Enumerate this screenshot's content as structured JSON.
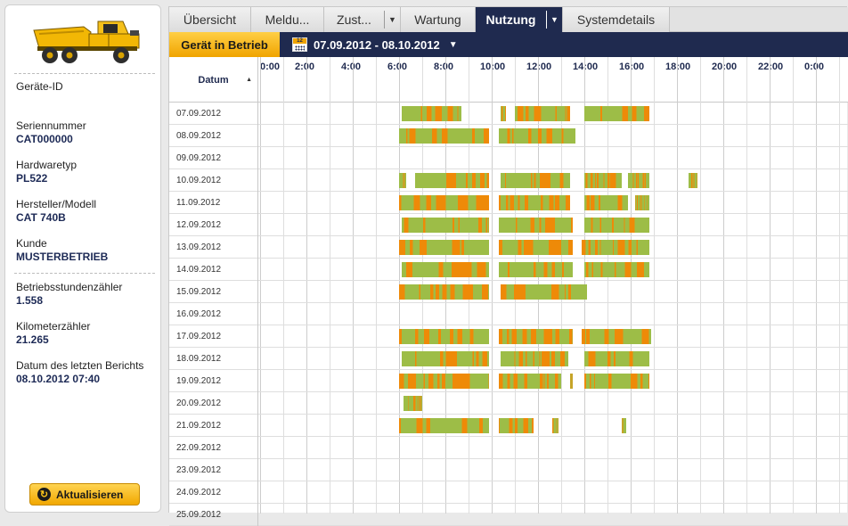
{
  "tabs": [
    {
      "label": "Übersicht",
      "active": false,
      "dropdown": false
    },
    {
      "label": "Meldu...",
      "active": false,
      "dropdown": false
    },
    {
      "label": "Zust...",
      "active": false,
      "dropdown": true
    },
    {
      "label": "Wartung",
      "active": false,
      "dropdown": false
    },
    {
      "label": "Nutzung",
      "active": true,
      "dropdown": true
    },
    {
      "label": "Systemdetails",
      "active": false,
      "dropdown": false
    }
  ],
  "toolbar": {
    "status_label": "Gerät in Betrieb",
    "calendar_day": "12",
    "date_range": "07.09.2012 - 08.10.2012"
  },
  "grid_header": {
    "date_column": "Datum",
    "hours": [
      "0:00",
      "2:00",
      "4:00",
      "6:00",
      "8:00",
      "10:00",
      "12:00",
      "14:00",
      "16:00",
      "18:00",
      "20:00",
      "22:00",
      "0:00"
    ]
  },
  "device": {
    "geraete_id_label": "Geräte-ID",
    "geraete_id_value": "",
    "fields": [
      {
        "label": "Seriennummer",
        "value": "CAT000000"
      },
      {
        "label": "Hardwaretyp",
        "value": "PL522"
      },
      {
        "label": "Hersteller/Modell",
        "value": "CAT 740B"
      },
      {
        "label": "Kunde",
        "value": "MUSTERBETRIEB"
      },
      {
        "label": "Betriebsstundenzähler",
        "value": "1.558"
      },
      {
        "label": "Kilometerzähler",
        "value": "21.265"
      },
      {
        "label": "Datum des letzten Berichts",
        "value": "08.10.2012 07:40"
      }
    ],
    "truck_icon": "dump-truck-icon"
  },
  "refresh_label": "Aktualisieren",
  "colors": {
    "green": "#9dbd47",
    "orange": "#ee8a08",
    "navy": "#1f2a4f",
    "amber": "#f5b600"
  },
  "usage": [
    {
      "date": "07.09.2012",
      "segments": [
        [
          6.1,
          8.7
        ],
        [
          10.4,
          10.6
        ],
        [
          11.0,
          13.4
        ],
        [
          14.0,
          16.8
        ]
      ]
    },
    {
      "date": "08.09.2012",
      "segments": [
        [
          6.0,
          9.9
        ],
        [
          10.3,
          13.6
        ]
      ]
    },
    {
      "date": "09.09.2012",
      "segments": []
    },
    {
      "date": "10.09.2012",
      "segments": [
        [
          6.0,
          6.3
        ],
        [
          6.7,
          9.9
        ],
        [
          10.4,
          13.4
        ],
        [
          14.0,
          15.6
        ],
        [
          15.9,
          16.8
        ],
        [
          18.5,
          18.9
        ]
      ]
    },
    {
      "date": "11.09.2012",
      "segments": [
        [
          6.0,
          9.9
        ],
        [
          10.3,
          13.4
        ],
        [
          14.0,
          15.9
        ],
        [
          16.2,
          16.8
        ]
      ]
    },
    {
      "date": "12.09.2012",
      "segments": [
        [
          6.1,
          9.9
        ],
        [
          10.3,
          13.5
        ],
        [
          14.0,
          16.8
        ]
      ]
    },
    {
      "date": "13.09.2012",
      "segments": [
        [
          6.0,
          9.9
        ],
        [
          10.3,
          13.5
        ],
        [
          13.9,
          16.8
        ]
      ]
    },
    {
      "date": "14.09.2012",
      "segments": [
        [
          6.1,
          9.9
        ],
        [
          10.3,
          13.5
        ],
        [
          14.0,
          16.8
        ]
      ]
    },
    {
      "date": "15.09.2012",
      "segments": [
        [
          6.0,
          9.9
        ],
        [
          10.4,
          14.1
        ]
      ]
    },
    {
      "date": "16.09.2012",
      "segments": []
    },
    {
      "date": "17.09.2012",
      "segments": [
        [
          6.0,
          9.9
        ],
        [
          10.3,
          13.5
        ],
        [
          13.9,
          16.9
        ]
      ]
    },
    {
      "date": "18.09.2012",
      "segments": [
        [
          6.1,
          9.9
        ],
        [
          10.4,
          13.3
        ],
        [
          14.0,
          16.8
        ]
      ]
    },
    {
      "date": "19.09.2012",
      "segments": [
        [
          6.0,
          9.9
        ],
        [
          10.3,
          13.0
        ],
        [
          13.4,
          13.5
        ],
        [
          14.0,
          16.8
        ]
      ]
    },
    {
      "date": "20.09.2012",
      "segments": [
        [
          6.2,
          7.0
        ]
      ]
    },
    {
      "date": "21.09.2012",
      "segments": [
        [
          6.0,
          9.9
        ],
        [
          10.3,
          11.8
        ],
        [
          12.6,
          12.9
        ],
        [
          15.6,
          15.8
        ]
      ]
    },
    {
      "date": "22.09.2012",
      "segments": []
    },
    {
      "date": "23.09.2012",
      "segments": []
    },
    {
      "date": "24.09.2012",
      "segments": []
    },
    {
      "date": "25.09.2012",
      "segments": []
    }
  ]
}
